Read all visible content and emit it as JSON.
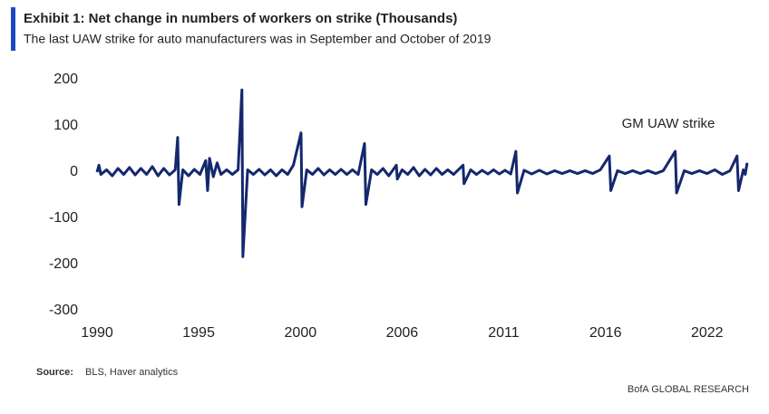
{
  "chart_data": {
    "type": "line",
    "title": "Exhibit 1: Net change in numbers of workers on strike (Thousands)",
    "subtitle": "The last UAW strike for auto manufacturers was in September and October of 2019",
    "annotation": "GM UAW strike",
    "source_label": "Source:",
    "source": "BLS, Haver analytics",
    "footer": "BofA GLOBAL RESEARCH",
    "color": "#14286e",
    "grid": false,
    "xlim": [
      1990,
      2024.2
    ],
    "xticks": [
      {
        "value": 1990,
        "label": "1990"
      },
      {
        "value": 1995.33,
        "label": "1995"
      },
      {
        "value": 2000.67,
        "label": "2000"
      },
      {
        "value": 2006,
        "label": "2006"
      },
      {
        "value": 2011.33,
        "label": "2011"
      },
      {
        "value": 2016.67,
        "label": "2016"
      },
      {
        "value": 2022,
        "label": "2022"
      }
    ],
    "ylim": [
      -300,
      200
    ],
    "yticks": [
      -300,
      -200,
      -100,
      0,
      100,
      200
    ],
    "x": [
      1990,
      1990.1,
      1990.2,
      1990.5,
      1990.8,
      1991.1,
      1991.4,
      1991.7,
      1992,
      1992.3,
      1992.6,
      1992.9,
      1993.2,
      1993.5,
      1993.8,
      1994.1,
      1994.23,
      1994.3,
      1994.5,
      1994.8,
      1995.1,
      1995.4,
      1995.7,
      1995.8,
      1995.9,
      1996.1,
      1996.3,
      1996.5,
      1996.8,
      1997.1,
      1997.4,
      1997.6,
      1997.65,
      1997.9,
      1998.2,
      1998.5,
      1998.8,
      1999.1,
      1999.4,
      1999.7,
      2000,
      2000.3,
      2000.7,
      2000.75,
      2001,
      2001.3,
      2001.6,
      2001.9,
      2002.2,
      2002.5,
      2002.8,
      2003.1,
      2003.4,
      2003.7,
      2004.03,
      2004.1,
      2004.4,
      2004.7,
      2005,
      2005.3,
      2005.7,
      2005.75,
      2006,
      2006.3,
      2006.6,
      2006.9,
      2007.2,
      2007.5,
      2007.8,
      2008.1,
      2008.4,
      2008.7,
      2009.2,
      2009.25,
      2009.6,
      2009.9,
      2010.2,
      2010.5,
      2010.8,
      2011.1,
      2011.4,
      2011.7,
      2011.97,
      2012.05,
      2012.4,
      2012.8,
      2013.2,
      2013.6,
      2014,
      2014.4,
      2014.8,
      2015.2,
      2015.6,
      2016,
      2016.4,
      2016.87,
      2016.95,
      2017.3,
      2017.7,
      2018.1,
      2018.5,
      2018.9,
      2019.3,
      2019.7,
      2020.33,
      2020.4,
      2020.8,
      2021.2,
      2021.6,
      2022,
      2022.4,
      2022.8,
      2023.2,
      2023.57,
      2023.65,
      2023.9,
      2024,
      2024.1
    ],
    "values": [
      0,
      15,
      -5,
      5,
      -8,
      8,
      -5,
      10,
      -6,
      8,
      -5,
      12,
      -8,
      8,
      -6,
      5,
      75,
      -70,
      5,
      -8,
      6,
      -5,
      25,
      -40,
      30,
      -10,
      20,
      -5,
      5,
      -5,
      5,
      178,
      -183,
      5,
      -5,
      6,
      -6,
      5,
      -8,
      5,
      -5,
      15,
      85,
      -75,
      5,
      -5,
      8,
      -6,
      5,
      -5,
      6,
      -5,
      5,
      -5,
      62,
      -70,
      5,
      -5,
      8,
      -8,
      15,
      -15,
      5,
      -5,
      10,
      -8,
      6,
      -6,
      8,
      -5,
      5,
      -5,
      15,
      -25,
      5,
      -5,
      4,
      -4,
      5,
      -4,
      4,
      -4,
      45,
      -45,
      4,
      -4,
      4,
      -4,
      3,
      -3,
      3,
      -3,
      3,
      -3,
      5,
      35,
      -40,
      3,
      -3,
      3,
      -3,
      3,
      -3,
      3,
      45,
      -45,
      3,
      -3,
      3,
      -3,
      5,
      -5,
      3,
      35,
      -40,
      5,
      -5,
      20
    ]
  }
}
